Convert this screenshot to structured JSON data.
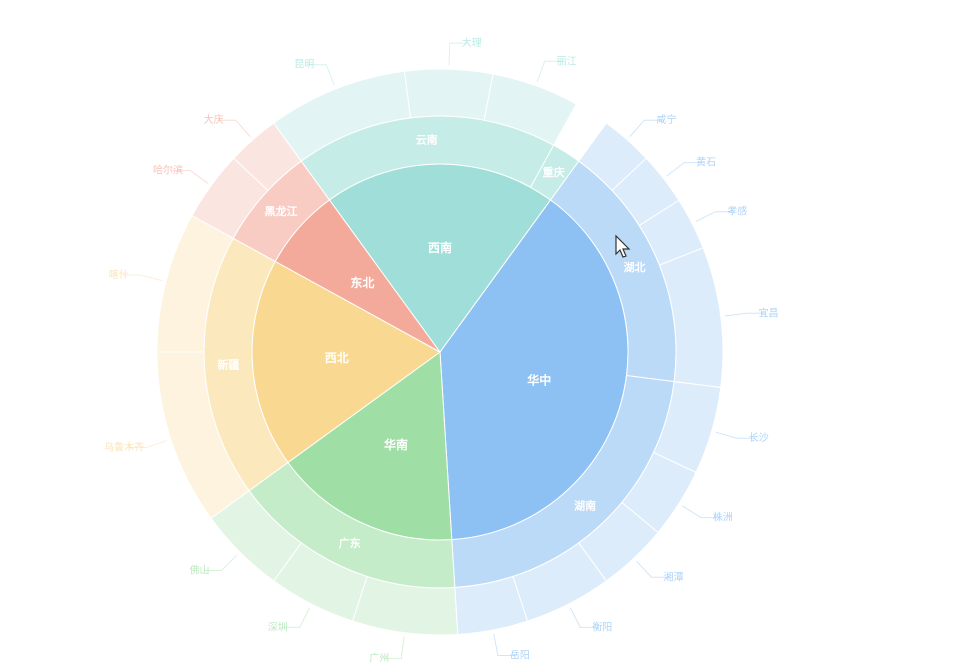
{
  "chart_data": {
    "type": "sunburst",
    "data": [
      {
        "name": "华中",
        "value": 39,
        "color": "#8dc1f3",
        "children": [
          {
            "name": "湖北",
            "value": 17,
            "children": [
              {
                "name": "咸宁",
                "value": 3
              },
              {
                "name": "黄石",
                "value": 3
              },
              {
                "name": "孝感",
                "value": 3
              },
              {
                "name": "宜昌",
                "value": 8
              }
            ]
          },
          {
            "name": "湖南",
            "value": 22,
            "children": [
              {
                "name": "长沙",
                "value": 5
              },
              {
                "name": "株洲",
                "value": 4
              },
              {
                "name": "湘潭",
                "value": 4
              },
              {
                "name": "衡阳",
                "value": 5
              },
              {
                "name": "岳阳",
                "value": 4
              }
            ]
          }
        ]
      },
      {
        "name": "华南",
        "value": 16,
        "color": "#9fdfa5",
        "children": [
          {
            "name": "广东",
            "value": 16,
            "children": [
              {
                "name": "广州",
                "value": 6
              },
              {
                "name": "深圳",
                "value": 5
              },
              {
                "name": "佛山",
                "value": 5
              }
            ]
          }
        ]
      },
      {
        "name": "西北",
        "value": 18,
        "color": "#f9d891",
        "children": [
          {
            "name": "新疆",
            "value": 18,
            "children": [
              {
                "name": "乌鲁木齐",
                "value": 10
              },
              {
                "name": "喀什",
                "value": 8
              }
            ]
          }
        ]
      },
      {
        "name": "东北",
        "value": 7,
        "color": "#f3aa9b",
        "children": [
          {
            "name": "黑龙江",
            "value": 7,
            "children": [
              {
                "name": "哈尔滨",
                "value": 4
              },
              {
                "name": "大庆",
                "value": 3
              }
            ]
          }
        ]
      },
      {
        "name": "西南",
        "value": 20,
        "color": "#a0dfd9",
        "children": [
          {
            "name": "云南",
            "value": 18,
            "children": [
              {
                "name": "昆明",
                "value": 8
              },
              {
                "name": "大理",
                "value": 5
              },
              {
                "name": "丽江",
                "value": 5
              }
            ]
          },
          {
            "name": "重庆",
            "value": 2
          }
        ]
      }
    ]
  }
}
